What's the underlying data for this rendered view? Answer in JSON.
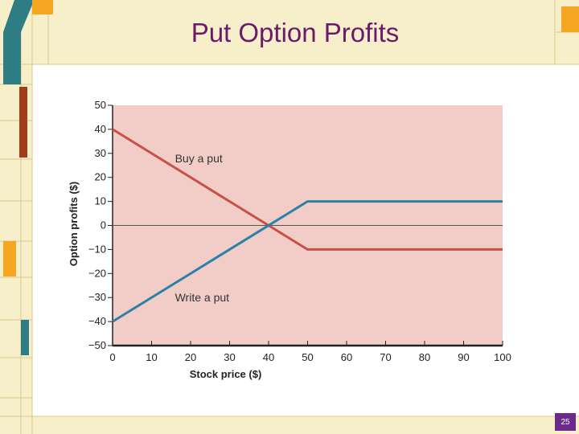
{
  "slide": {
    "title": "Put Option Profits",
    "page_number": "25"
  },
  "colors": {
    "title": "#6b1a6b",
    "plot_background": "#f2cdc8",
    "buy_put": "#c8504a",
    "write_put": "#2a82a8",
    "decor_orange": "#f5a623",
    "decor_teal": "#2e7d84",
    "decor_cream": "#f7efc9",
    "page_badge": "#6b2a8a"
  },
  "chart_data": {
    "type": "line",
    "xlabel": "Stock price ($)",
    "ylabel": "Option profits ($)",
    "xlim": [
      0,
      100
    ],
    "ylim": [
      -50,
      50
    ],
    "x_ticks": [
      "0",
      "10",
      "20",
      "30",
      "40",
      "50",
      "60",
      "70",
      "80",
      "90",
      "100"
    ],
    "y_ticks": [
      "50",
      "40",
      "30",
      "20",
      "10",
      "0",
      "−10",
      "−20",
      "−30",
      "−40",
      "−50"
    ],
    "grid": false,
    "series": [
      {
        "label": "Buy a put",
        "x": [
          0,
          50,
          100
        ],
        "y": [
          40,
          -10,
          -10
        ]
      },
      {
        "label": "Write a put",
        "x": [
          0,
          50,
          100
        ],
        "y": [
          -40,
          10,
          10
        ]
      }
    ],
    "annotations": [
      {
        "text": "Buy a put",
        "x": 16,
        "y": 28
      },
      {
        "text": "Write a put",
        "x": 16,
        "y": -30
      }
    ]
  }
}
